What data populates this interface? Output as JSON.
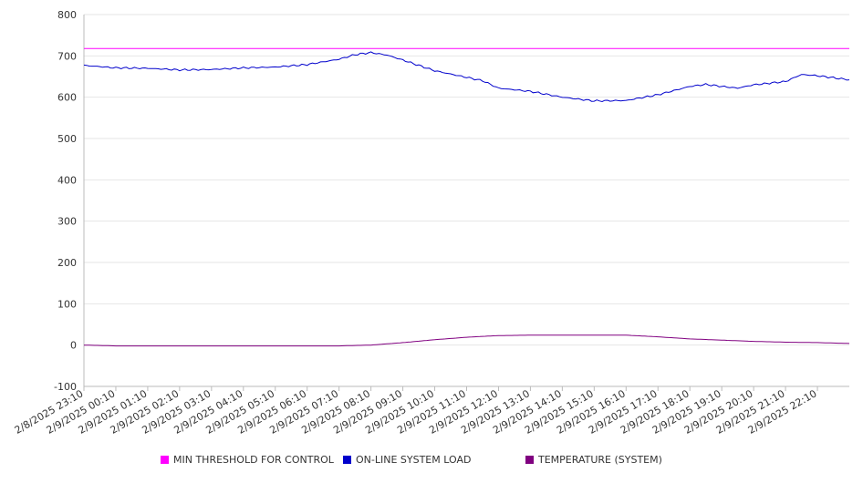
{
  "chart_data": {
    "type": "line",
    "title": "",
    "xlabel": "",
    "ylabel": "",
    "ylim": [
      -100,
      800
    ],
    "yticks": [
      -100,
      0,
      100,
      200,
      300,
      400,
      500,
      600,
      700,
      800
    ],
    "grid": true,
    "legend_position": "bottom",
    "x_tick_labels": [
      "2/8/2025 23:10",
      "2/9/2025 00:10",
      "2/9/2025 01:10",
      "2/9/2025 02:10",
      "2/9/2025 03:10",
      "2/9/2025 04:10",
      "2/9/2025 05:10",
      "2/9/2025 06:10",
      "2/9/2025 07:10",
      "2/9/2025 08:10",
      "2/9/2025 09:10",
      "2/9/2025 10:10",
      "2/9/2025 11:10",
      "2/9/2025 12:10",
      "2/9/2025 13:10",
      "2/9/2025 14:10",
      "2/9/2025 15:10",
      "2/9/2025 16:10",
      "2/9/2025 17:10",
      "2/9/2025 18:10",
      "2/9/2025 19:10",
      "2/9/2025 20:10",
      "2/9/2025 21:10",
      "2/9/2025 22:10"
    ],
    "x_range": [
      "2/8/2025 23:10",
      "2/9/2025 23:10"
    ],
    "series": [
      {
        "name": "MIN THRESHOLD FOR CONTROL",
        "color": "#ff00ff",
        "points": [
          [
            "2/8/2025 23:10",
            718
          ],
          [
            "2/9/2025 23:10",
            718
          ]
        ]
      },
      {
        "name": "ON-LINE SYSTEM LOAD",
        "color": "#0000cc",
        "points": [
          [
            "2/8/2025 23:10",
            677
          ],
          [
            "2/9/2025 00:10",
            671
          ],
          [
            "2/9/2025 01:10",
            670
          ],
          [
            "2/9/2025 02:10",
            666
          ],
          [
            "2/9/2025 03:10",
            667
          ],
          [
            "2/9/2025 04:10",
            671
          ],
          [
            "2/9/2025 05:10",
            673
          ],
          [
            "2/9/2025 06:10",
            679
          ],
          [
            "2/9/2025 07:10",
            692
          ],
          [
            "2/9/2025 07:40",
            703
          ],
          [
            "2/9/2025 08:10",
            708
          ],
          [
            "2/9/2025 08:40",
            702
          ],
          [
            "2/9/2025 09:10",
            690
          ],
          [
            "2/9/2025 10:10",
            664
          ],
          [
            "2/9/2025 11:10",
            648
          ],
          [
            "2/9/2025 11:40",
            640
          ],
          [
            "2/9/2025 12:10",
            622
          ],
          [
            "2/9/2025 13:10",
            614
          ],
          [
            "2/9/2025 14:10",
            600
          ],
          [
            "2/9/2025 15:10",
            591
          ],
          [
            "2/9/2025 16:10",
            592
          ],
          [
            "2/9/2025 17:10",
            606
          ],
          [
            "2/9/2025 18:10",
            626
          ],
          [
            "2/9/2025 18:40",
            631
          ],
          [
            "2/9/2025 19:10",
            626
          ],
          [
            "2/9/2025 19:40",
            622
          ],
          [
            "2/9/2025 20:10",
            630
          ],
          [
            "2/9/2025 21:10",
            638
          ],
          [
            "2/9/2025 21:40",
            655
          ],
          [
            "2/9/2025 22:10",
            652
          ],
          [
            "2/9/2025 23:10",
            642
          ]
        ]
      },
      {
        "name": "TEMPERATURE (SYSTEM)",
        "color": "#800080",
        "points": [
          [
            "2/8/2025 23:10",
            0
          ],
          [
            "2/9/2025 00:10",
            -2
          ],
          [
            "2/9/2025 07:10",
            -2
          ],
          [
            "2/9/2025 08:10",
            0
          ],
          [
            "2/9/2025 09:10",
            6
          ],
          [
            "2/9/2025 10:10",
            13
          ],
          [
            "2/9/2025 11:10",
            19
          ],
          [
            "2/9/2025 12:10",
            23
          ],
          [
            "2/9/2025 13:10",
            24
          ],
          [
            "2/9/2025 16:10",
            24
          ],
          [
            "2/9/2025 17:10",
            20
          ],
          [
            "2/9/2025 18:10",
            15
          ],
          [
            "2/9/2025 19:10",
            12
          ],
          [
            "2/9/2025 20:10",
            9
          ],
          [
            "2/9/2025 21:10",
            7
          ],
          [
            "2/9/2025 22:10",
            6
          ],
          [
            "2/9/2025 23:10",
            4
          ]
        ]
      }
    ]
  }
}
